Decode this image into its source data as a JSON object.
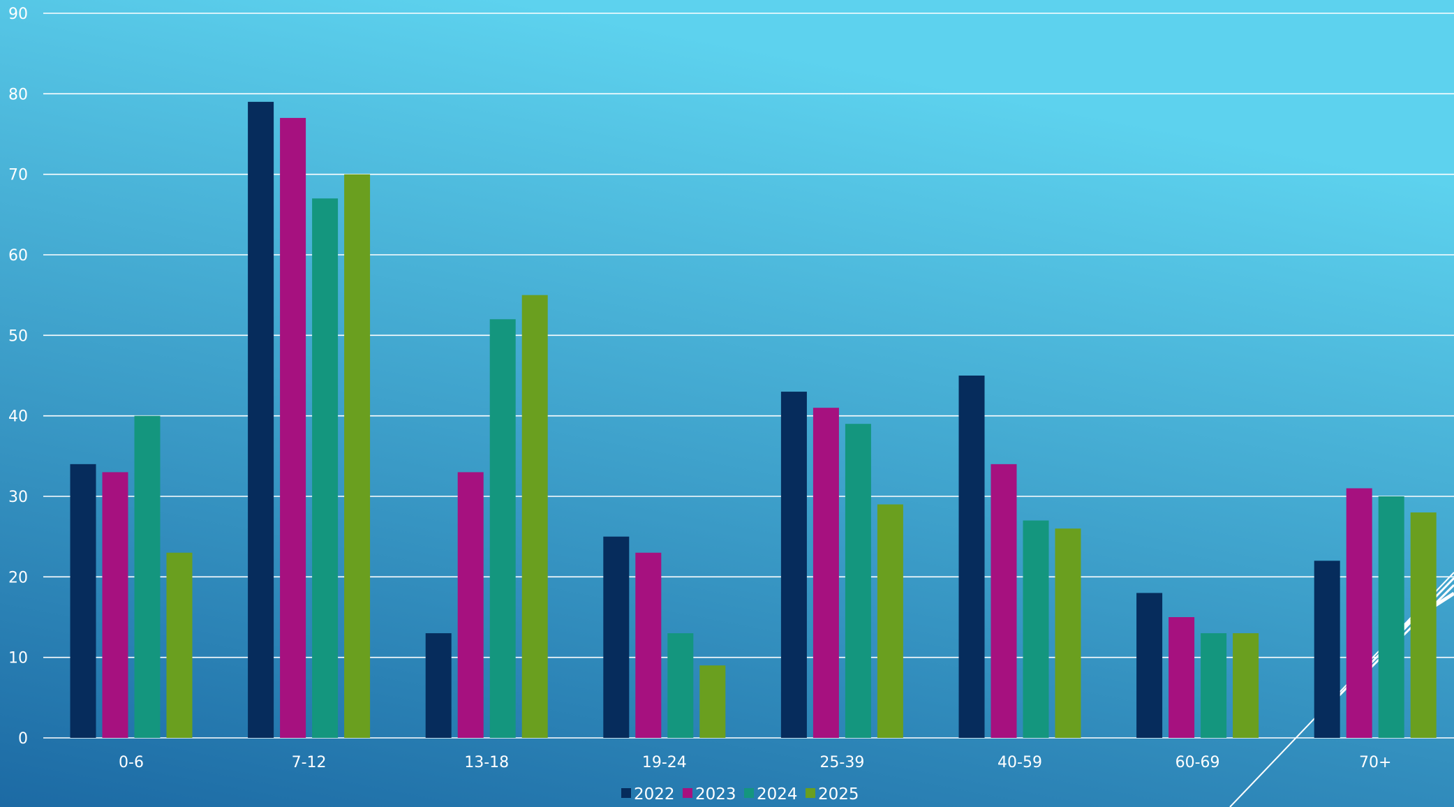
{
  "chart_data": {
    "type": "bar",
    "title": "",
    "xlabel": "",
    "ylabel": "",
    "categories": [
      "0-6",
      "7-12",
      "13-18",
      "19-24",
      "25-39",
      "40-59",
      "60-69",
      "70+"
    ],
    "series": [
      {
        "name": "2022",
        "color": "#062c5c",
        "values": [
          34,
          79,
          13,
          25,
          43,
          45,
          18,
          22
        ]
      },
      {
        "name": "2023",
        "color": "#a6117f",
        "values": [
          33,
          77,
          33,
          23,
          41,
          34,
          15,
          31
        ]
      },
      {
        "name": "2024",
        "color": "#14967e",
        "values": [
          40,
          67,
          52,
          13,
          39,
          27,
          13,
          30
        ]
      },
      {
        "name": "2025",
        "color": "#6a9f1f",
        "values": [
          23,
          70,
          55,
          9,
          29,
          26,
          13,
          28
        ]
      }
    ],
    "ylim": [
      0,
      90
    ],
    "yticks": [
      0,
      10,
      20,
      30,
      40,
      50,
      60,
      70,
      80,
      90
    ],
    "grid": true,
    "legend_position": "bottom-center",
    "background": {
      "top_color": "#5dd2ee",
      "bottom_color": "#1c6aa4"
    },
    "gridline_color": "#ffffff",
    "text_color": "#ffffff"
  }
}
